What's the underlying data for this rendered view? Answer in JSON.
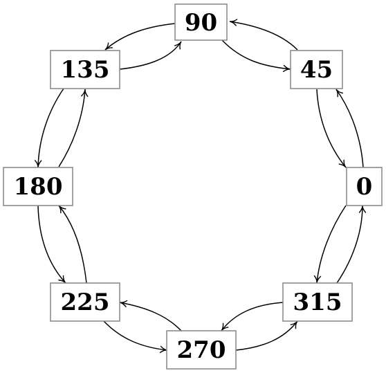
{
  "nodes": [
    {
      "id": "n0",
      "label": "0"
    },
    {
      "id": "n45",
      "label": "45"
    },
    {
      "id": "n90",
      "label": "90"
    },
    {
      "id": "n135",
      "label": "135"
    },
    {
      "id": "n180",
      "label": "180"
    },
    {
      "id": "n225",
      "label": "225"
    },
    {
      "id": "n270",
      "label": "270"
    },
    {
      "id": "n315",
      "label": "315"
    }
  ],
  "edges": [
    {
      "from": "n0",
      "to": "n45"
    },
    {
      "from": "n45",
      "to": "n0"
    },
    {
      "from": "n45",
      "to": "n90"
    },
    {
      "from": "n90",
      "to": "n45"
    },
    {
      "from": "n90",
      "to": "n135"
    },
    {
      "from": "n135",
      "to": "n90"
    },
    {
      "from": "n135",
      "to": "n180"
    },
    {
      "from": "n180",
      "to": "n135"
    },
    {
      "from": "n180",
      "to": "n225"
    },
    {
      "from": "n225",
      "to": "n180"
    },
    {
      "from": "n225",
      "to": "n270"
    },
    {
      "from": "n270",
      "to": "n225"
    },
    {
      "from": "n270",
      "to": "n315"
    },
    {
      "from": "n315",
      "to": "n270"
    },
    {
      "from": "n315",
      "to": "n0"
    },
    {
      "from": "n0",
      "to": "n315"
    }
  ]
}
